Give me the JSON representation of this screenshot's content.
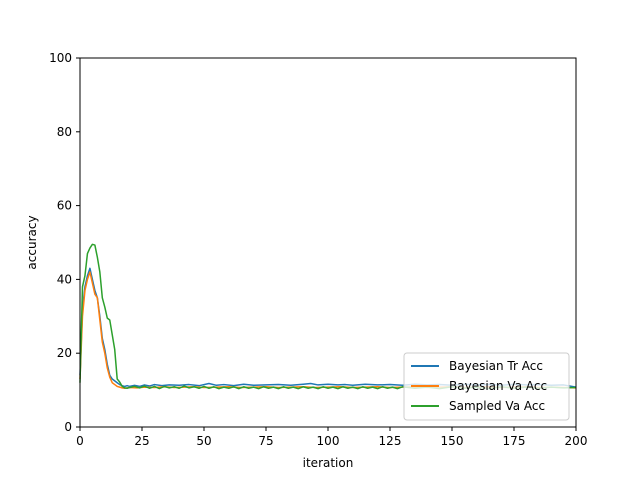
{
  "chart_data": {
    "type": "line",
    "title": "",
    "xlabel": "iteration",
    "ylabel": "accuracy",
    "xlim": [
      0,
      200
    ],
    "ylim": [
      0,
      100
    ],
    "xticks": [
      0,
      25,
      50,
      75,
      100,
      125,
      150,
      175,
      200
    ],
    "yticks": [
      0,
      20,
      40,
      60,
      80,
      100
    ],
    "grid": false,
    "legend_position": "lower-right",
    "series": [
      {
        "name": "Bayesian Tr Acc",
        "color": "#1f77b4",
        "x": [
          0,
          1,
          2,
          3,
          4,
          5,
          6,
          7,
          8,
          9,
          10,
          11,
          12,
          13,
          14,
          15,
          16,
          17,
          18,
          19,
          20,
          22,
          24,
          26,
          28,
          30,
          33,
          36,
          40,
          44,
          48,
          52,
          55,
          58,
          62,
          66,
          70,
          75,
          80,
          85,
          90,
          93,
          96,
          100,
          104,
          107,
          110,
          115,
          120,
          125,
          130,
          135,
          140,
          145,
          150,
          155,
          160,
          165,
          170,
          175,
          180,
          185,
          190,
          195,
          200
        ],
        "y": [
          14,
          32,
          38,
          41,
          43,
          40,
          37,
          35,
          30,
          24,
          21,
          17,
          14,
          13,
          12.5,
          12,
          11.5,
          11.2,
          11,
          11.2,
          11,
          11.3,
          11,
          11.4,
          11.1,
          11.5,
          11.2,
          11.4,
          11.3,
          11.5,
          11.2,
          11.8,
          11.3,
          11.5,
          11.2,
          11.6,
          11.3,
          11.4,
          11.5,
          11.3,
          11.6,
          11.8,
          11.4,
          11.6,
          11.4,
          11.5,
          11.3,
          11.6,
          11.4,
          11.5,
          11.3,
          11.6,
          11.4,
          11.5,
          11.3,
          11.6,
          11.4,
          11.5,
          11.3,
          11.6,
          11.4,
          11.5,
          11.3,
          11.4,
          10.8
        ]
      },
      {
        "name": "Bayesian Va Acc",
        "color": "#ff7f0e",
        "x": [
          0,
          1,
          2,
          3,
          4,
          5,
          6,
          7,
          8,
          9,
          10,
          11,
          12,
          13,
          14,
          15,
          16,
          17,
          18,
          19,
          20,
          23,
          26,
          30,
          34,
          38,
          42,
          46,
          50,
          55,
          60,
          65,
          70,
          75,
          80,
          85,
          90,
          95,
          100,
          105,
          110,
          115,
          120,
          125,
          130,
          135,
          140,
          145,
          150,
          155,
          160,
          165,
          170,
          175,
          180,
          185,
          190,
          195,
          200
        ],
        "y": [
          13,
          30,
          37,
          40,
          42,
          39,
          36,
          35,
          29,
          23,
          20,
          16,
          13.5,
          12,
          11.5,
          11,
          10.8,
          10.6,
          10.5,
          10.6,
          10.7,
          10.6,
          10.8,
          10.7,
          10.9,
          10.7,
          10.8,
          10.9,
          10.7,
          10.8,
          10.9,
          10.7,
          10.8,
          10.9,
          10.7,
          10.8,
          10.9,
          10.7,
          10.8,
          10.9,
          10.7,
          10.8,
          10.9,
          10.7,
          10.8,
          10.9,
          10.7,
          10.8,
          10.9,
          10.7,
          10.8,
          10.9,
          10.7,
          10.8,
          10.9,
          10.7,
          10.8,
          10.7,
          10.6
        ]
      },
      {
        "name": "Sampled Va Acc",
        "color": "#2ca02c",
        "x": [
          0,
          1,
          2,
          3,
          4,
          5,
          6,
          7,
          8,
          9,
          10,
          11,
          12,
          13,
          14,
          15,
          16,
          17,
          18,
          19,
          20,
          22,
          24,
          26,
          28,
          30,
          32,
          34,
          36,
          38,
          40,
          42,
          44,
          46,
          48,
          50,
          52,
          54,
          56,
          58,
          60,
          62,
          64,
          66,
          68,
          70,
          72,
          74,
          76,
          78,
          80,
          82,
          84,
          86,
          88,
          90,
          92,
          94,
          96,
          98,
          100,
          102,
          104,
          106,
          108,
          110,
          112,
          114,
          116,
          118,
          120,
          122,
          124,
          126,
          128,
          130,
          135,
          140,
          145,
          150,
          155,
          160,
          165,
          170,
          175,
          180,
          185,
          190,
          195,
          200
        ],
        "y": [
          12,
          38,
          41,
          47,
          48.5,
          49.5,
          49.3,
          46,
          42,
          35,
          32.5,
          29.5,
          29,
          25,
          21,
          13,
          12.2,
          11,
          10.6,
          10.5,
          10.7,
          11,
          10.6,
          11.1,
          10.5,
          11,
          10.4,
          11,
          10.6,
          10.9,
          10.5,
          11.1,
          10.6,
          10.9,
          10.5,
          11,
          10.5,
          10.9,
          10.4,
          10.8,
          10.5,
          10.9,
          10.4,
          10.9,
          10.5,
          10.8,
          10.4,
          10.9,
          10.5,
          10.8,
          10.4,
          10.9,
          10.5,
          10.8,
          10.4,
          10.9,
          10.5,
          10.8,
          10.4,
          10.9,
          10.5,
          10.8,
          10.4,
          10.9,
          10.5,
          10.8,
          10.4,
          10.9,
          10.5,
          10.8,
          10.4,
          10.9,
          10.5,
          10.8,
          10.4,
          10.9,
          10.5,
          10.8,
          10.4,
          10.9,
          10.5,
          10.8,
          10.4,
          10.9,
          10.5,
          10.8,
          10.5,
          10.8,
          10.6,
          10.7
        ]
      }
    ]
  }
}
